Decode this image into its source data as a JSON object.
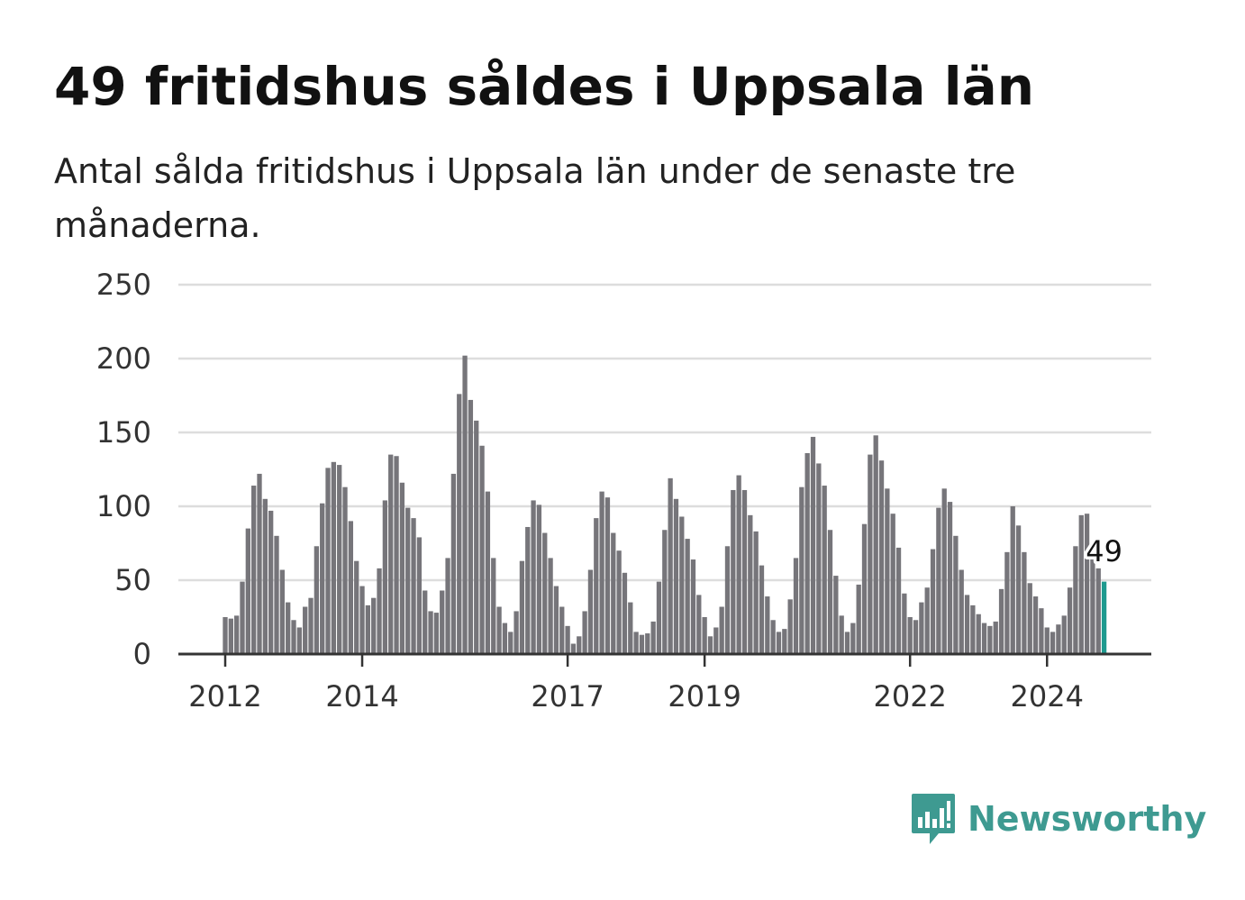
{
  "header": {
    "title": "49 fritidshus såldes i Uppsala län",
    "subtitle": "Antal sålda fritidshus i Uppsala län under de senaste tre månaderna."
  },
  "brand": {
    "name": "Newsworthy",
    "icon": "bar-chart-speech-bubble-icon",
    "color": "#3e9a91"
  },
  "colors": {
    "bar": "#76757a",
    "highlight": "#1e9a8f",
    "grid": "#dddddd",
    "axis": "#333333"
  },
  "chart_data": {
    "type": "bar",
    "title": "49 fritidshus såldes i Uppsala län",
    "subtitle": "Antal sålda fritidshus i Uppsala län under de senaste tre månaderna.",
    "xlabel": "",
    "ylabel": "",
    "ylim": [
      0,
      250
    ],
    "yticks": [
      0,
      50,
      100,
      150,
      200,
      250
    ],
    "xticks": [
      "2012",
      "2014",
      "2017",
      "2019",
      "2022",
      "2024"
    ],
    "grid": true,
    "legend": "none",
    "start": "2012-01",
    "frequency": "monthly",
    "highlight_label": "49",
    "values": [
      25,
      24,
      26,
      49,
      85,
      114,
      122,
      105,
      97,
      80,
      57,
      35,
      23,
      18,
      32,
      38,
      73,
      102,
      126,
      130,
      128,
      113,
      90,
      63,
      46,
      33,
      38,
      58,
      104,
      135,
      134,
      116,
      99,
      92,
      79,
      43,
      29,
      28,
      43,
      65,
      122,
      176,
      202,
      172,
      158,
      141,
      110,
      65,
      32,
      21,
      15,
      29,
      63,
      86,
      104,
      101,
      82,
      65,
      46,
      32,
      19,
      7,
      12,
      29,
      57,
      92,
      110,
      106,
      82,
      70,
      55,
      35,
      15,
      13,
      14,
      22,
      49,
      84,
      119,
      105,
      93,
      78,
      64,
      40,
      25,
      12,
      18,
      32,
      73,
      111,
      121,
      111,
      94,
      83,
      60,
      39,
      23,
      15,
      17,
      37,
      65,
      113,
      136,
      147,
      129,
      114,
      84,
      53,
      26,
      15,
      21,
      47,
      88,
      135,
      148,
      131,
      112,
      95,
      72,
      41,
      25,
      23,
      35,
      45,
      71,
      99,
      112,
      103,
      80,
      57,
      40,
      33,
      27,
      21,
      19,
      22,
      44,
      69,
      100,
      87,
      69,
      48,
      39,
      31,
      18,
      15,
      20,
      26,
      45,
      73,
      94,
      95,
      66,
      58,
      49
    ]
  }
}
